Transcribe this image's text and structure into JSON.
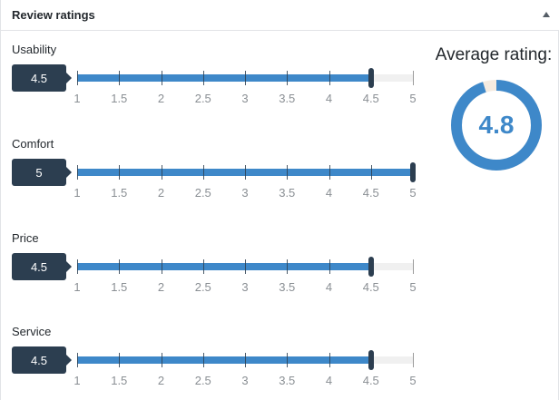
{
  "panel": {
    "title": "Review ratings"
  },
  "ratings": [
    {
      "label": "Usability",
      "value": 4.5,
      "display": "4.5"
    },
    {
      "label": "Comfort",
      "value": 5,
      "display": "5"
    },
    {
      "label": "Price",
      "value": 4.5,
      "display": "4.5"
    },
    {
      "label": "Service",
      "value": 4.5,
      "display": "4.5"
    }
  ],
  "scale": {
    "min": 1,
    "max": 5,
    "ticks": [
      "1",
      "1.5",
      "2",
      "2.5",
      "3",
      "3.5",
      "4",
      "4.5",
      "5"
    ]
  },
  "average": {
    "label": "Average rating:",
    "value": 4.8,
    "display": "4.8"
  },
  "colors": {
    "fill": "#3e88c9",
    "dark": "#2c3e50",
    "track": "#f0f0f0",
    "donut_rest": "#f5ebe0"
  }
}
